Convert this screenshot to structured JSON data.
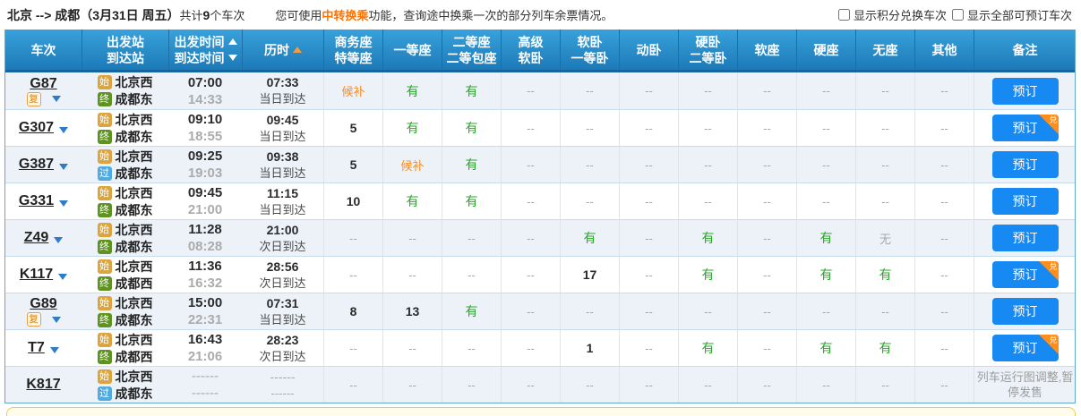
{
  "topbar": {
    "route": {
      "from": "北京",
      "arrow": "-->",
      "to": "成都",
      "date": "（3月31日 周五）",
      "count_prefix": "共计",
      "count": "9",
      "count_suffix": "个车次"
    },
    "notice": {
      "pre": "您可使用",
      "highlight": "中转换乘",
      "post": "功能，查询途中换乘一次的部分列车余票情况。"
    },
    "checkboxes": [
      {
        "label": "显示积分兑换车次",
        "checked": false
      },
      {
        "label": "显示全部可预订车次",
        "checked": false
      }
    ]
  },
  "table": {
    "book_label": "预订",
    "redeem_badge": "兑",
    "headers": [
      {
        "line1": "车次",
        "sortable": false
      },
      {
        "line1": "出发站",
        "line2": "到达站",
        "sortable": false
      },
      {
        "line1": "出发时间",
        "arrow1": "up-white",
        "line2": "到达时间",
        "arrow2": "down-white",
        "sortable": true
      },
      {
        "line1": "历时",
        "arrow1": "up-orange",
        "sortable": true
      },
      {
        "line1": "商务座",
        "line2": "特等座",
        "sortable": false
      },
      {
        "line1": "一等座",
        "sortable": false
      },
      {
        "line1": "二等座",
        "line2": "二等包座",
        "sortable": false
      },
      {
        "line1": "高级",
        "line2": "软卧",
        "sortable": false
      },
      {
        "line1": "软卧",
        "line2": "一等卧",
        "sortable": false
      },
      {
        "line1": "动卧",
        "sortable": false
      },
      {
        "line1": "硬卧",
        "line2": "二等卧",
        "sortable": false
      },
      {
        "line1": "软座",
        "sortable": false
      },
      {
        "line1": "硬座",
        "sortable": false
      },
      {
        "line1": "无座",
        "sortable": false
      },
      {
        "line1": "其他",
        "sortable": false
      },
      {
        "line1": "备注",
        "sortable": false
      }
    ],
    "rows": [
      {
        "train": "G87",
        "fuxing": true,
        "expand": true,
        "badge": false,
        "inactive": false,
        "dep_icon": "始",
        "dep_station": "北京西",
        "arr_icon": "终",
        "arr_station": "成都东",
        "dep_time": "07:00",
        "arr_time": "14:33",
        "duration": "07:33",
        "arrive": "当日到达",
        "seats": [
          "候补",
          "有",
          "有",
          "--",
          "--",
          "--",
          "--",
          "--",
          "--",
          "--",
          "--"
        ],
        "note": null
      },
      {
        "train": "G307",
        "fuxing": false,
        "expand": true,
        "badge": true,
        "inactive": false,
        "dep_icon": "始",
        "dep_station": "北京西",
        "arr_icon": "终",
        "arr_station": "成都东",
        "dep_time": "09:10",
        "arr_time": "18:55",
        "duration": "09:45",
        "arrive": "当日到达",
        "seats": [
          "5",
          "有",
          "有",
          "--",
          "--",
          "--",
          "--",
          "--",
          "--",
          "--",
          "--"
        ],
        "note": null
      },
      {
        "train": "G387",
        "fuxing": false,
        "expand": true,
        "badge": false,
        "inactive": false,
        "dep_icon": "始",
        "dep_station": "北京西",
        "arr_icon": "过",
        "arr_station": "成都东",
        "dep_time": "09:25",
        "arr_time": "19:03",
        "duration": "09:38",
        "arrive": "当日到达",
        "seats": [
          "5",
          "候补",
          "有",
          "--",
          "--",
          "--",
          "--",
          "--",
          "--",
          "--",
          "--"
        ],
        "note": null
      },
      {
        "train": "G331",
        "fuxing": false,
        "expand": true,
        "badge": false,
        "inactive": false,
        "dep_icon": "始",
        "dep_station": "北京西",
        "arr_icon": "终",
        "arr_station": "成都东",
        "dep_time": "09:45",
        "arr_time": "21:00",
        "duration": "11:15",
        "arrive": "当日到达",
        "seats": [
          "10",
          "有",
          "有",
          "--",
          "--",
          "--",
          "--",
          "--",
          "--",
          "--",
          "--"
        ],
        "note": null
      },
      {
        "train": "Z49",
        "fuxing": false,
        "expand": true,
        "badge": false,
        "inactive": false,
        "dep_icon": "始",
        "dep_station": "北京西",
        "arr_icon": "终",
        "arr_station": "成都东",
        "dep_time": "11:28",
        "arr_time": "08:28",
        "duration": "21:00",
        "arrive": "次日到达",
        "seats": [
          "--",
          "--",
          "--",
          "--",
          "有",
          "--",
          "有",
          "--",
          "有",
          "无",
          "--"
        ],
        "note": null
      },
      {
        "train": "K117",
        "fuxing": false,
        "expand": true,
        "badge": true,
        "inactive": false,
        "dep_icon": "始",
        "dep_station": "北京西",
        "arr_icon": "终",
        "arr_station": "成都西",
        "dep_time": "11:36",
        "arr_time": "16:32",
        "duration": "28:56",
        "arrive": "次日到达",
        "seats": [
          "--",
          "--",
          "--",
          "--",
          "17",
          "--",
          "有",
          "--",
          "有",
          "有",
          "--"
        ],
        "note": null
      },
      {
        "train": "G89",
        "fuxing": true,
        "expand": true,
        "badge": false,
        "inactive": false,
        "dep_icon": "始",
        "dep_station": "北京西",
        "arr_icon": "终",
        "arr_station": "成都东",
        "dep_time": "15:00",
        "arr_time": "22:31",
        "duration": "07:31",
        "arrive": "当日到达",
        "seats": [
          "8",
          "13",
          "有",
          "--",
          "--",
          "--",
          "--",
          "--",
          "--",
          "--",
          "--"
        ],
        "note": null
      },
      {
        "train": "T7",
        "fuxing": false,
        "expand": true,
        "badge": true,
        "inactive": false,
        "dep_icon": "始",
        "dep_station": "北京西",
        "arr_icon": "终",
        "arr_station": "成都西",
        "dep_time": "16:43",
        "arr_time": "21:06",
        "duration": "28:23",
        "arrive": "次日到达",
        "seats": [
          "--",
          "--",
          "--",
          "--",
          "1",
          "--",
          "有",
          "--",
          "有",
          "有",
          "--"
        ],
        "note": null
      },
      {
        "train": "K817",
        "fuxing": false,
        "expand": false,
        "badge": false,
        "inactive": true,
        "dep_icon": "始",
        "dep_station": "北京西",
        "arr_icon": "过",
        "arr_station": "成都东",
        "dep_time": "------",
        "arr_time": "------",
        "duration": "------",
        "arrive": "------",
        "seats": [
          "--",
          "--",
          "--",
          "--",
          "--",
          "--",
          "--",
          "--",
          "--",
          "--",
          "--"
        ],
        "note": "列车运行图调整,暂停发售"
      }
    ]
  },
  "colors": {
    "header_blue_top": "#38a1db",
    "header_blue_bottom": "#1c7ab7",
    "button_blue": "#1789f2",
    "available_green": "#2ca52c",
    "waitlist_orange": "#fb8c1e",
    "redeem_orange": "#ff8d1a",
    "highlight_orange": "#ff7200",
    "alt_row": "#edf2f9"
  }
}
